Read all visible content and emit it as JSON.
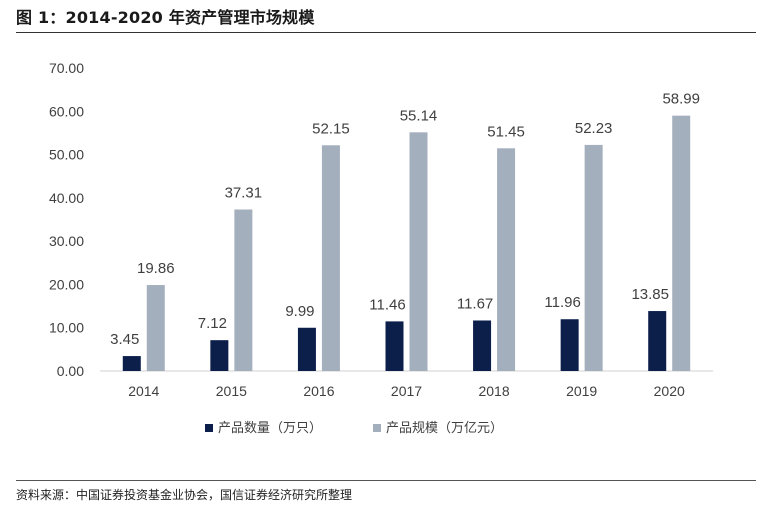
{
  "header": {
    "title": "图 1：2014-2020 年资产管理市场规模"
  },
  "footer": {
    "source": "资料来源：中国证券投资基金业协会，国信证券经济研究所整理"
  },
  "colors": {
    "series1": "#0b1f4a",
    "series2": "#a4afbd",
    "axis": "#d0d0d0",
    "text": "#404040"
  },
  "chart_data": {
    "type": "bar",
    "categories": [
      "2014",
      "2015",
      "2016",
      "2017",
      "2018",
      "2019",
      "2020"
    ],
    "series": [
      {
        "name": "产品数量（万只）",
        "values": [
          3.45,
          7.12,
          9.99,
          11.46,
          11.67,
          11.96,
          13.85
        ],
        "labels": [
          "3.45",
          "7.12",
          "9.99",
          "11.46",
          "11.67",
          "11.96",
          "13.85"
        ]
      },
      {
        "name": "产品规模（万亿元）",
        "values": [
          19.86,
          37.31,
          52.15,
          55.14,
          51.45,
          52.23,
          58.99
        ],
        "labels": [
          "19.86",
          "37.31",
          "52.15",
          "55.14",
          "51.45",
          "52.23",
          "58.99"
        ]
      }
    ],
    "yticks": [
      "0.00",
      "10.00",
      "20.00",
      "30.00",
      "40.00",
      "50.00",
      "60.00",
      "70.00"
    ],
    "ylim": [
      0,
      70
    ],
    "grid": false,
    "legend": "bottom"
  }
}
